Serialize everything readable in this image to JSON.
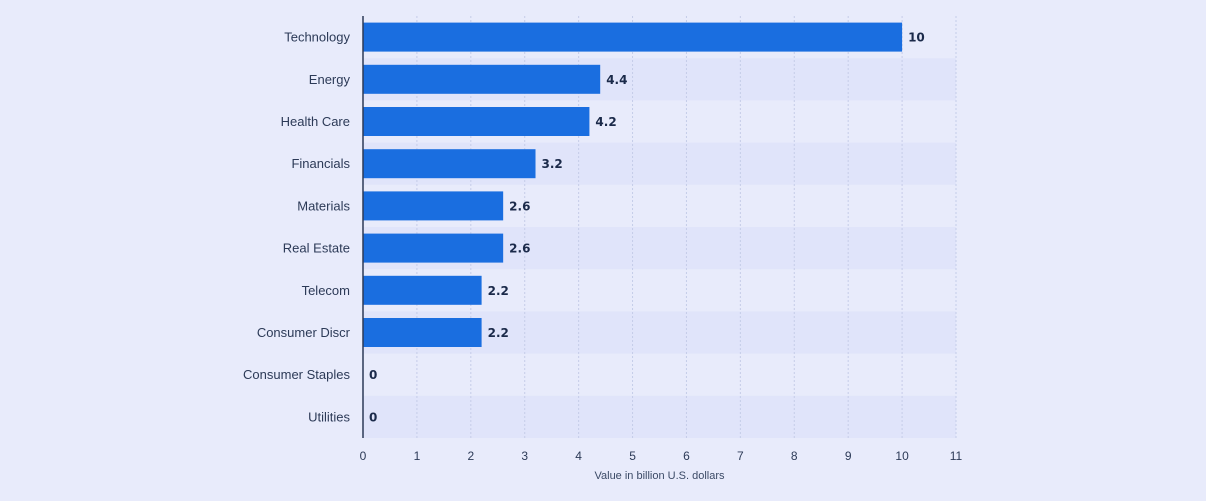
{
  "colors": {
    "background": "#e8ebfb",
    "bar": "#1a6ee0",
    "row_alt": "#e0e4fa",
    "grid": "#c5cce8",
    "axis": "#2c3a57"
  },
  "chart_data": {
    "type": "bar",
    "orientation": "horizontal",
    "categories": [
      "Technology",
      "Energy",
      "Health Care",
      "Financials",
      "Materials",
      "Real Estate",
      "Telecom",
      "Consumer Discr",
      "Consumer Staples",
      "Utilities"
    ],
    "values": [
      10,
      4.4,
      4.2,
      3.2,
      2.6,
      2.6,
      2.2,
      2.2,
      0,
      0
    ],
    "value_labels": [
      "10",
      "4.4",
      "4.2",
      "3.2",
      "2.6",
      "2.6",
      "2.2",
      "2.2",
      "0",
      "0"
    ],
    "title": "",
    "xlabel": "Value in billion U.S. dollars",
    "ylabel": "",
    "xlim": [
      0,
      11
    ],
    "xticks": [
      0,
      1,
      2,
      3,
      4,
      5,
      6,
      7,
      8,
      9,
      10,
      11
    ],
    "grid": true,
    "legend": "none"
  }
}
